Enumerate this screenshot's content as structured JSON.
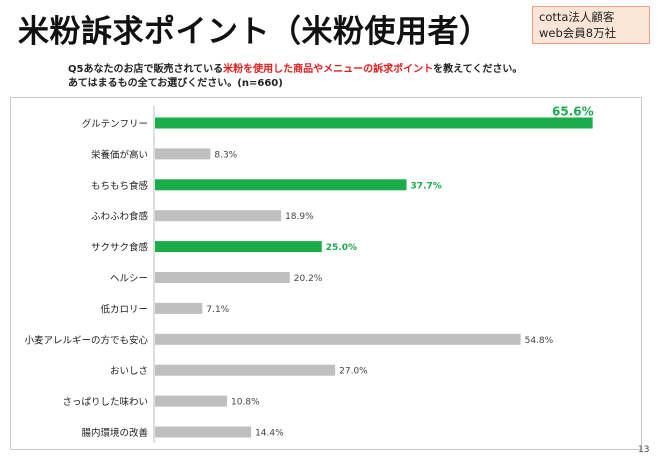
{
  "title": "米粉訴求ポイント（米粉使用者）",
  "badge": {
    "line1": "cotta法人顧客",
    "line2": "web会員8万社"
  },
  "question": {
    "part1": "Q5あなたのお店で販売されている",
    "highlight": "米粉を使用した商品やメニューの訴求ポイント",
    "part2": "を教えてください。",
    "line2": "あてはまるもの全てお選びください。(n=660)"
  },
  "page_number": "13",
  "colors": {
    "highlight_bar": "#1aab4a",
    "normal_bar": "#bfbfbf",
    "highlight_text": "#1aab4a",
    "red_text": "#e02020"
  },
  "chart_data": {
    "type": "bar",
    "orientation": "horizontal",
    "categories": [
      "グルテンフリー",
      "栄養価が高い",
      "もちもち食感",
      "ふわふわ食感",
      "サクサク食感",
      "ヘルシー",
      "低カロリー",
      "小麦アレルギーの方でも安心",
      "おいしさ",
      "さっぱりした味わい",
      "腸内環境の改善"
    ],
    "values": [
      65.6,
      8.3,
      37.7,
      18.9,
      25.0,
      20.2,
      7.1,
      54.8,
      27.0,
      10.8,
      14.4
    ],
    "labels": [
      "65.6%",
      "8.3%",
      "37.7%",
      "18.9%",
      "25.0%",
      "20.2%",
      "7.1%",
      "54.8%",
      "27.0%",
      "10.8%",
      "14.4%"
    ],
    "highlighted": [
      true,
      false,
      true,
      false,
      true,
      false,
      false,
      false,
      false,
      false,
      false
    ],
    "xlim": [
      0,
      70
    ],
    "grid": false,
    "title": "",
    "xlabel": "",
    "ylabel": ""
  }
}
